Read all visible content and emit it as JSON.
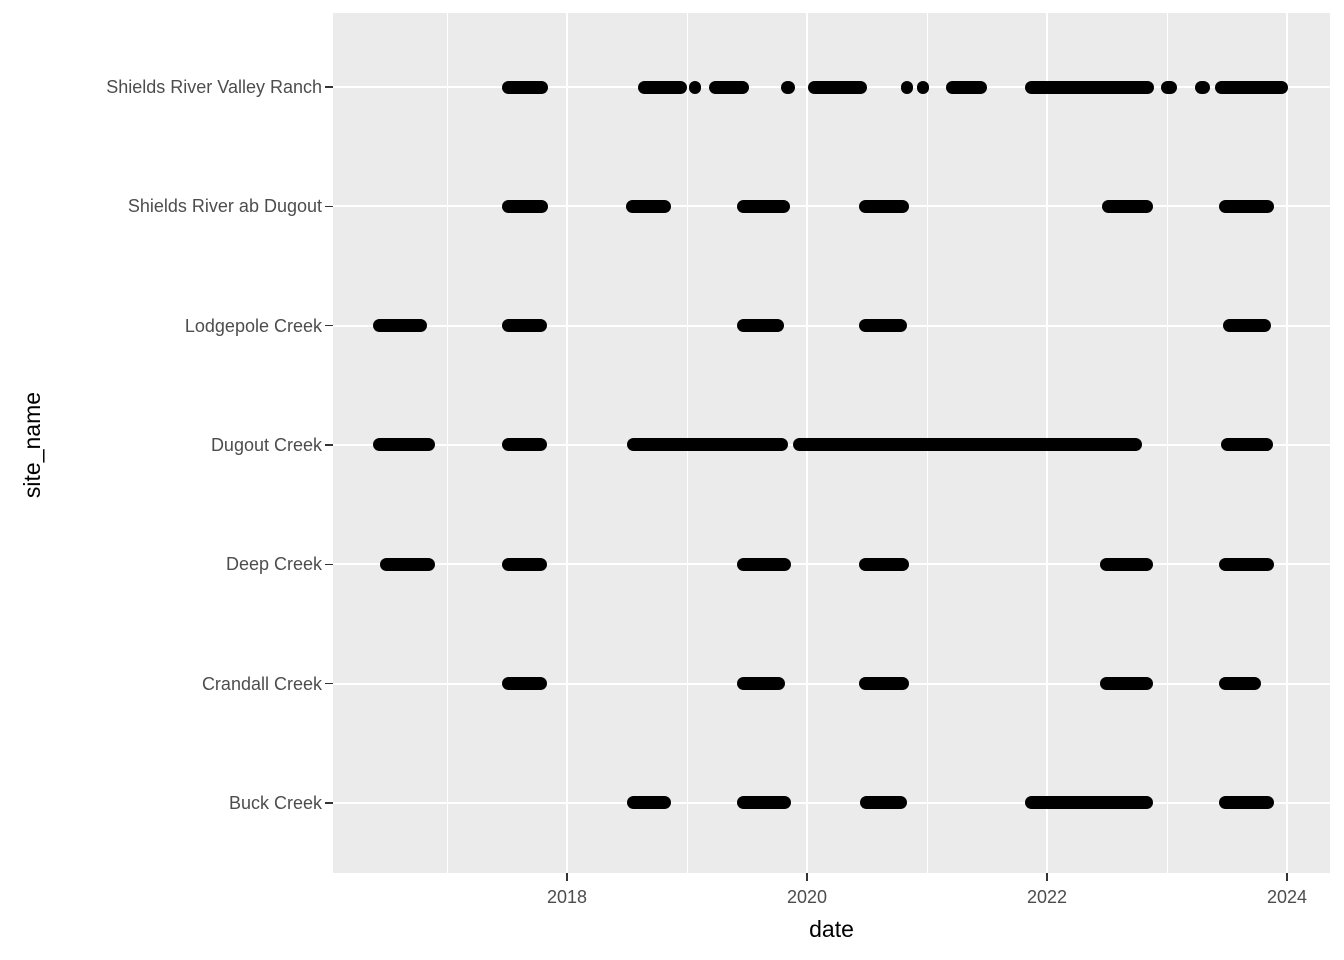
{
  "chart_data": {
    "type": "scatter",
    "title": "",
    "xlabel": "date",
    "ylabel": "site_name",
    "legend": "none",
    "grid": "on",
    "panel_bg_color": "#ebebeb",
    "grid_color": "#ffffff",
    "point_color": "#000000",
    "axis_text_color": "#4d4d4d",
    "axis_title_color": "#000000",
    "x_axis": {
      "tick_labels": [
        "2018",
        "2020",
        "2022",
        "2024"
      ],
      "tick_years": [
        2018,
        2020,
        2022,
        2024
      ],
      "minor_grid_years": [
        2017,
        2019,
        2021,
        2023
      ],
      "range_years": [
        2016.05,
        2024.36
      ]
    },
    "categories_top_to_bottom": [
      "Shields River Valley Ranch",
      "Shields River ab Dugout",
      "Lodgepole Creek",
      "Dugout Creek",
      "Deep Creek",
      "Crandall Creek",
      "Buck Creek"
    ],
    "series": [
      {
        "site": "Shields River Valley Ranch",
        "observation_spans_decimal_years": [
          [
            2017.46,
            2017.84
          ],
          [
            2018.59,
            2019.0
          ],
          [
            2019.02,
            2019.12
          ],
          [
            2019.18,
            2019.52
          ],
          [
            2019.78,
            2019.9
          ],
          [
            2020.01,
            2020.5
          ],
          [
            2020.78,
            2020.88
          ],
          [
            2020.92,
            2021.02
          ],
          [
            2021.16,
            2021.5
          ],
          [
            2021.82,
            2022.89
          ],
          [
            2022.95,
            2023.08
          ],
          [
            2023.23,
            2023.36
          ],
          [
            2023.4,
            2024.01
          ]
        ]
      },
      {
        "site": "Shields River ab Dugout",
        "observation_spans_decimal_years": [
          [
            2017.46,
            2017.84
          ],
          [
            2018.49,
            2018.87
          ],
          [
            2019.42,
            2019.86
          ],
          [
            2020.43,
            2020.85
          ],
          [
            2022.46,
            2022.88
          ],
          [
            2023.43,
            2023.89
          ]
        ]
      },
      {
        "site": "Lodgepole Creek",
        "observation_spans_decimal_years": [
          [
            2016.38,
            2016.83
          ],
          [
            2017.46,
            2017.83
          ],
          [
            2019.42,
            2019.81
          ],
          [
            2020.43,
            2020.83
          ],
          [
            2023.47,
            2023.87
          ]
        ]
      },
      {
        "site": "Dugout Creek",
        "observation_spans_decimal_years": [
          [
            2016.38,
            2016.9
          ],
          [
            2017.46,
            2017.83
          ],
          [
            2018.5,
            2019.84
          ],
          [
            2019.88,
            2022.79
          ],
          [
            2023.45,
            2023.88
          ]
        ]
      },
      {
        "site": "Deep Creek",
        "observation_spans_decimal_years": [
          [
            2016.44,
            2016.9
          ],
          [
            2017.46,
            2017.83
          ],
          [
            2019.42,
            2019.87
          ],
          [
            2020.43,
            2020.85
          ],
          [
            2022.44,
            2022.88
          ],
          [
            2023.43,
            2023.89
          ]
        ]
      },
      {
        "site": "Crandall Creek",
        "observation_spans_decimal_years": [
          [
            2017.46,
            2017.83
          ],
          [
            2019.42,
            2019.82
          ],
          [
            2020.43,
            2020.85
          ],
          [
            2022.44,
            2022.88
          ],
          [
            2023.43,
            2023.78
          ]
        ]
      },
      {
        "site": "Buck Creek",
        "observation_spans_decimal_years": [
          [
            2018.5,
            2018.87
          ],
          [
            2019.42,
            2019.87
          ],
          [
            2020.44,
            2020.83
          ],
          [
            2021.82,
            2022.88
          ],
          [
            2023.43,
            2023.89
          ]
        ]
      }
    ]
  }
}
